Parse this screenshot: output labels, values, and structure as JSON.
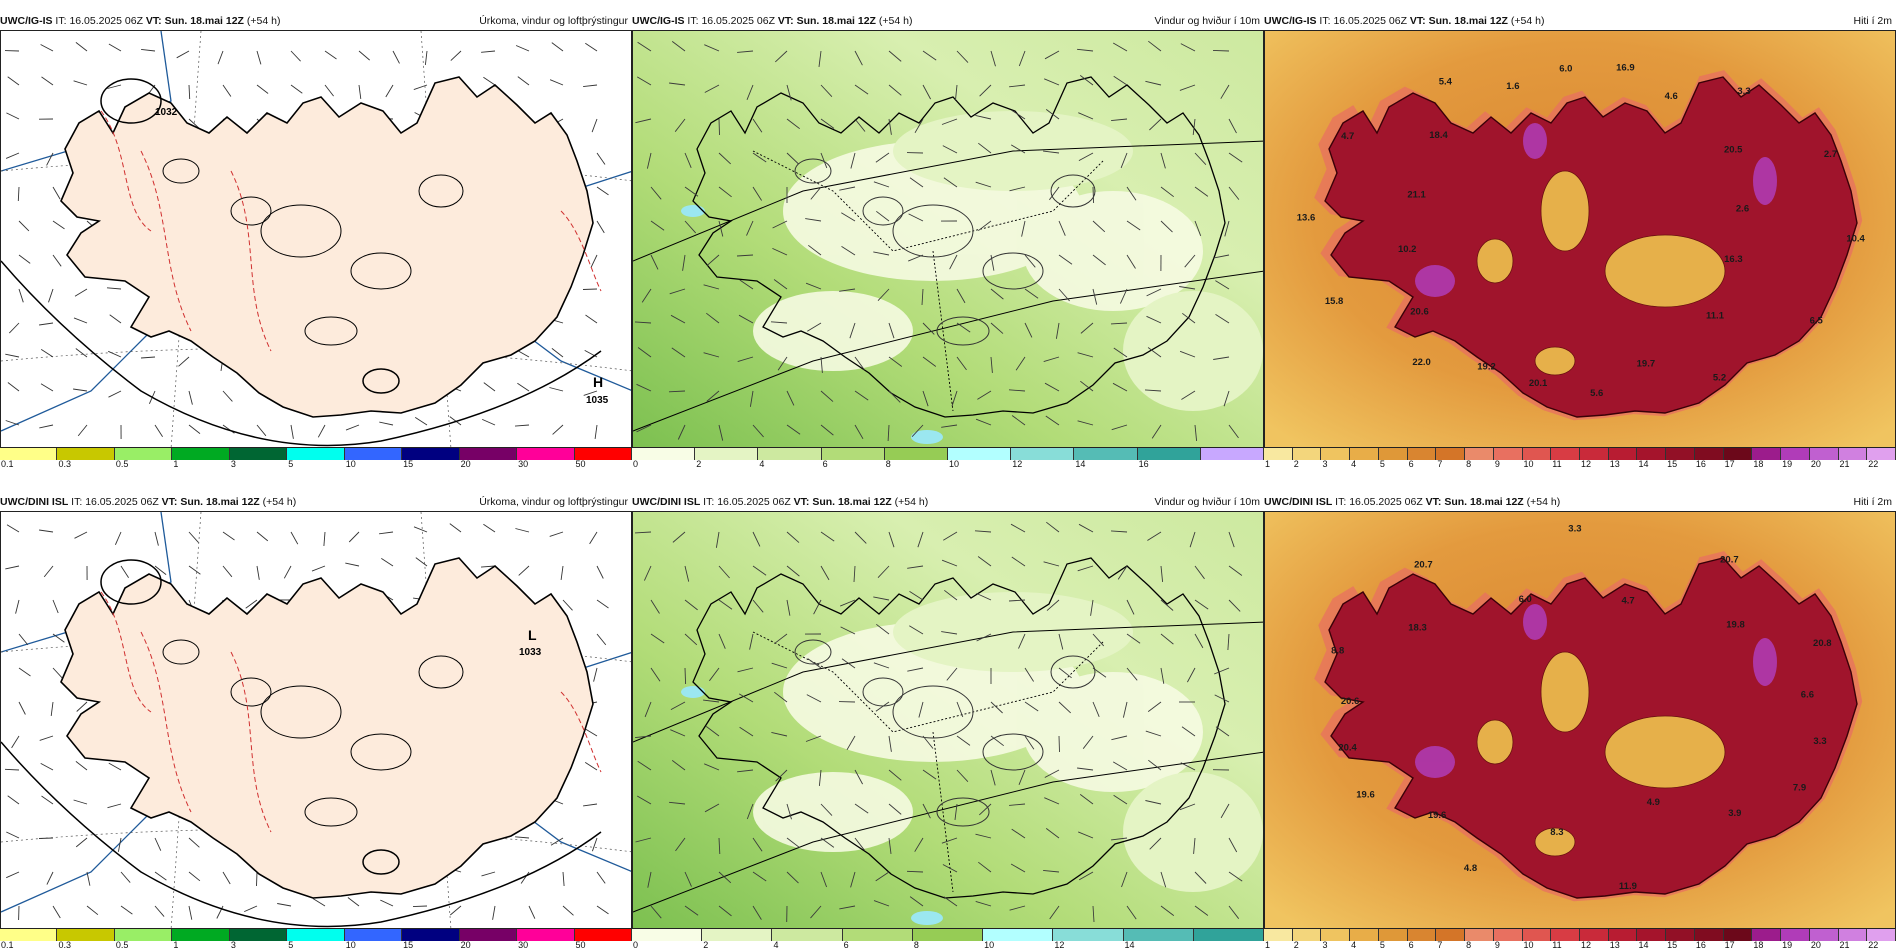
{
  "rows": [
    {
      "model": "UWC/IG-IS",
      "run_time": "16.05.2025 06Z",
      "valid_time": "Sun. 18.mai 12Z",
      "lead": "(+54 h)"
    },
    {
      "model": "UWC/DINI ISL",
      "run_time": "16.05.2025 06Z",
      "valid_time": "Sun. 18.mai 12Z",
      "lead": "(+54 h)"
    }
  ],
  "labels": {
    "it": "IT:",
    "vt": "VT:"
  },
  "panel_titles": {
    "precip": "Úrkoma, vindur og loftþrýstingur",
    "wind": "Vindur og hviður í 10m",
    "temp": "Hiti í 2m"
  },
  "precip_scale": {
    "ticks": [
      "0.1",
      "0.3",
      "0.5",
      "1",
      "3",
      "5",
      "10",
      "15",
      "20",
      "30",
      "50"
    ],
    "colors": [
      "#ffff88",
      "#c8c800",
      "#99ee66",
      "#00aa22",
      "#006633",
      "#00ffee",
      "#3366ff",
      "#000080",
      "#770066",
      "#ff0099",
      "#ff0000"
    ]
  },
  "wind_scale_top": {
    "ticks": [
      "0",
      "2",
      "4",
      "6",
      "8",
      "10",
      "12",
      "14",
      "16"
    ],
    "colors": [
      "#f8fde6",
      "#e4f4c4",
      "#cde9a0",
      "#b2dc78",
      "#96cc55",
      "#b2ffff",
      "#88ddd8",
      "#55bcb5",
      "#30a39a",
      "#c8a8ff"
    ]
  },
  "wind_scale_bottom": {
    "ticks": [
      "0",
      "2",
      "4",
      "6",
      "8",
      "10",
      "12",
      "14"
    ],
    "colors": [
      "#f8fde6",
      "#e4f4c4",
      "#cde9a0",
      "#b2dc78",
      "#96cc55",
      "#b2ffff",
      "#88ddd8",
      "#55bcb5",
      "#30a39a"
    ]
  },
  "temp_scale": {
    "ticks": [
      "1",
      "2",
      "3",
      "4",
      "5",
      "6",
      "7",
      "8",
      "9",
      "10",
      "11",
      "12",
      "13",
      "14",
      "15",
      "16",
      "17",
      "18",
      "19",
      "20",
      "21",
      "22"
    ],
    "colors": [
      "#f8e8a0",
      "#f3d67c",
      "#efc460",
      "#e8ad48",
      "#df9838",
      "#d98530",
      "#d47528",
      "#ea8a6a",
      "#e87060",
      "#e05650",
      "#d83c44",
      "#c92a3a",
      "#b81c32",
      "#a5142c",
      "#921026",
      "#800c20",
      "#6c081a",
      "#9c1c8c",
      "#b03cb8",
      "#c060d0",
      "#d080e0",
      "#e0a0ee"
    ]
  },
  "pressure_labels": {
    "top": [
      {
        "text": "1032"
      },
      {
        "text": "H"
      },
      {
        "text": "1035"
      }
    ],
    "bottom": [
      {
        "text": "L"
      },
      {
        "text": "1033"
      }
    ]
  },
  "temp_values": {
    "top": [
      "16.3",
      "6.5",
      "11.1",
      "5.2",
      "19.7",
      "5.6",
      "20.1",
      "19.2",
      "22.0",
      "20.6",
      "15.8",
      "10.2",
      "13.6",
      "21.1",
      "4.7",
      "18.4",
      "5.4",
      "1.6",
      "6.0",
      "16.9",
      "4.6",
      "3.3",
      "20.5",
      "2.7",
      "2.6",
      "10.4"
    ],
    "bottom": [
      "4.9",
      "11.9",
      "8.3",
      "4.8",
      "19.6",
      "19.6",
      "20.4",
      "20.6",
      "8.8",
      "18.3",
      "20.7",
      "6.0",
      "3.3",
      "4.7",
      "20.7",
      "19.8",
      "20.8",
      "6.6",
      "3.3",
      "7.9",
      "3.9"
    ]
  }
}
